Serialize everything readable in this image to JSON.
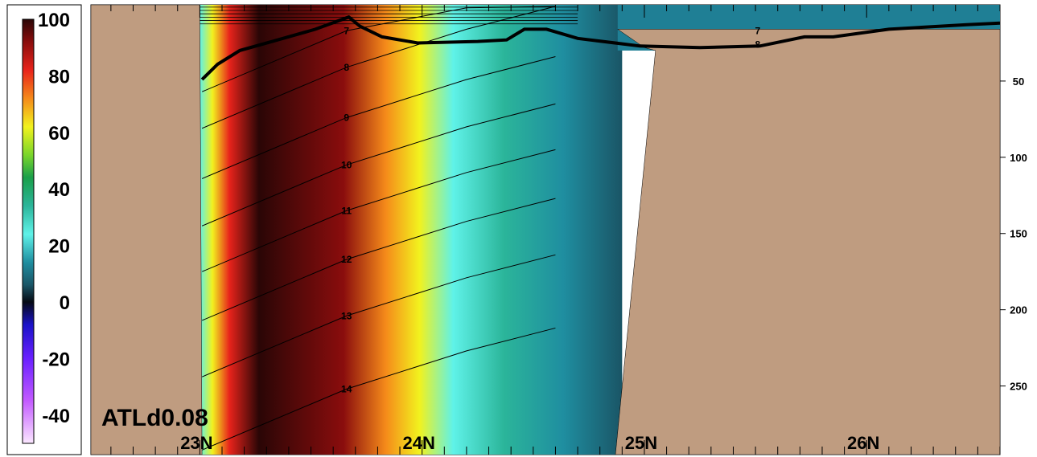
{
  "chart_data": {
    "type": "heatmap",
    "title": "ATLd0.08",
    "colorbar": {
      "ticks": [
        "100",
        "80",
        "60",
        "40",
        "20",
        "0",
        "-20",
        "-40"
      ],
      "range": [
        -50,
        100
      ],
      "stops": [
        {
          "v": 100,
          "color": "#2a0606"
        },
        {
          "v": 92,
          "color": "#8a0d0d"
        },
        {
          "v": 82,
          "color": "#e8231b"
        },
        {
          "v": 72,
          "color": "#f58a1a"
        },
        {
          "v": 62,
          "color": "#f2f21e"
        },
        {
          "v": 52,
          "color": "#7ad62b"
        },
        {
          "v": 44,
          "color": "#1a9f4a"
        },
        {
          "v": 34,
          "color": "#2bb59a"
        },
        {
          "v": 24,
          "color": "#5ff2e8"
        },
        {
          "v": 14,
          "color": "#1f8ea0"
        },
        {
          "v": 6,
          "color": "#1a5566"
        },
        {
          "v": 0,
          "color": "#060a14"
        },
        {
          "v": -8,
          "color": "#1a12c8"
        },
        {
          "v": -20,
          "color": "#6a20ff"
        },
        {
          "v": -35,
          "color": "#c35bff"
        },
        {
          "v": -50,
          "color": "#fbe7ff"
        }
      ]
    },
    "xaxis": {
      "ticks": [
        "23N",
        "24N",
        "25N",
        "26N"
      ],
      "values": [
        23,
        24,
        25,
        26
      ],
      "range": [
        22.51,
        26.6
      ]
    },
    "yaxis": {
      "ticks": [
        "50",
        "100",
        "150",
        "200",
        "250"
      ],
      "values": [
        50,
        100,
        150,
        200,
        250
      ],
      "range": [
        0,
        295
      ],
      "side": "right",
      "inverted": true
    },
    "contour_labels": [
      {
        "text": "7",
        "x": 23.66,
        "y": 17
      },
      {
        "text": "8",
        "x": 23.66,
        "y": 41
      },
      {
        "text": "9",
        "x": 23.66,
        "y": 74
      },
      {
        "text": "10",
        "x": 23.66,
        "y": 105
      },
      {
        "text": "11",
        "x": 23.66,
        "y": 135
      },
      {
        "text": "12",
        "x": 23.66,
        "y": 167
      },
      {
        "text": "13",
        "x": 23.66,
        "y": 204
      },
      {
        "text": "14",
        "x": 23.66,
        "y": 252
      },
      {
        "text": "7",
        "x": 25.51,
        "y": 17
      },
      {
        "text": "8",
        "x": 25.51,
        "y": 26
      }
    ],
    "mixed_layer_depth": {
      "x": [
        23.01,
        23.08,
        23.18,
        23.35,
        23.52,
        23.67,
        23.72,
        23.82,
        23.98,
        24.25,
        24.38,
        24.46,
        24.56,
        24.7,
        24.98,
        25.25,
        25.52,
        25.72,
        25.85,
        26.1,
        26.45,
        26.6
      ],
      "y": [
        49,
        39,
        30,
        23,
        16,
        8,
        14,
        21,
        25,
        24,
        23,
        16,
        16,
        22,
        27,
        28,
        27,
        21,
        21,
        16,
        13,
        12
      ]
    },
    "land": [
      {
        "name": "left",
        "x": [
          22.51,
          23.0,
          23.01,
          22.51
        ],
        "y": [
          0,
          0,
          295,
          295
        ]
      },
      {
        "name": "right",
        "x": [
          24.87,
          25.0,
          25.12,
          25.35,
          25.55,
          25.75,
          26.0,
          26.3,
          26.6,
          26.6,
          24.88,
          24.96,
          25.0,
          25.05
        ],
        "y": [
          295,
          295,
          295,
          295,
          295,
          295,
          295,
          295,
          295,
          16,
          16,
          24,
          28,
          30
        ]
      }
    ]
  }
}
